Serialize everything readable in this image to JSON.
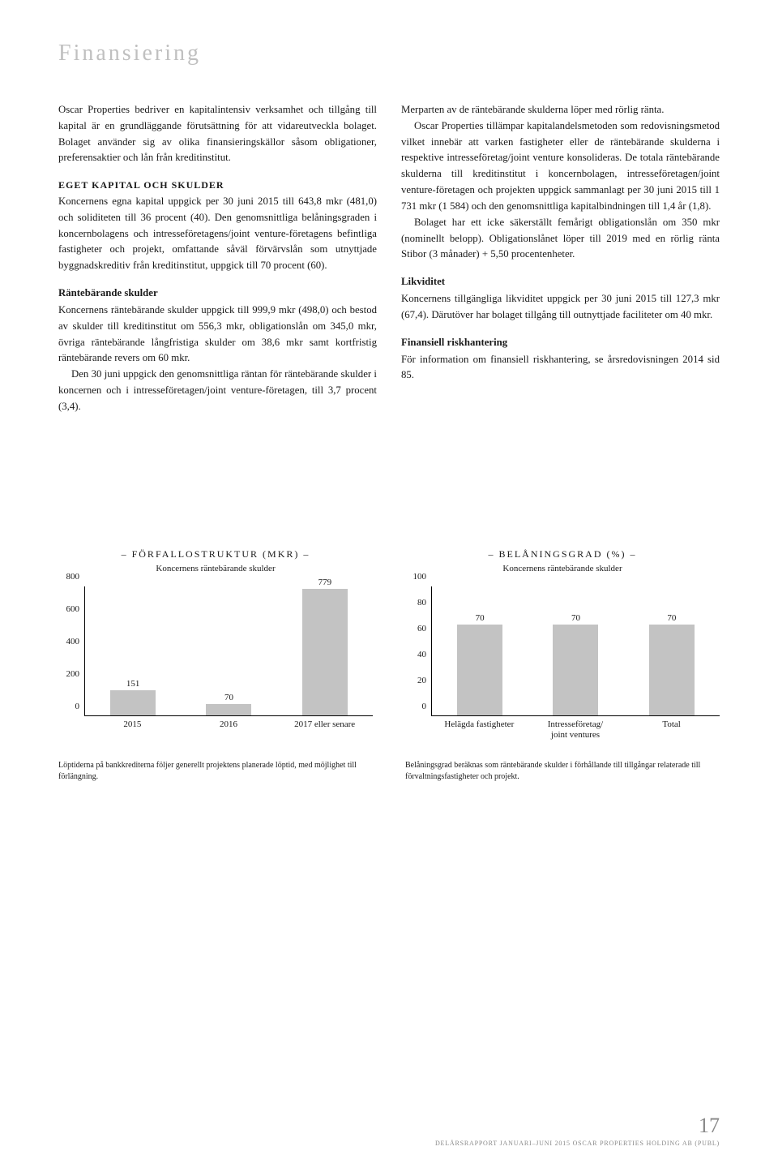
{
  "page_title": "Finansiering",
  "left": {
    "intro": "Oscar Properties bedriver en kapitalintensiv verksamhet och tillgång till kapital är en grundläggande förutsättning för att vidareutveckla bolaget. Bolaget använder sig av olika finansieringskällor såsom obligationer, preferensaktier och lån från kreditinstitut.",
    "h1": "EGET KAPITAL OCH SKULDER",
    "p1": "Koncernens egna kapital uppgick per 30 juni 2015 till 643,8 mkr (481,0) och soliditeten till 36 procent (40). Den genomsnittliga belåningsgraden i koncernbolagens och intresseföretagens/joint venture-företagens befintliga fastigheter och projekt, omfattande såväl förvärvslån som utnyttjade byggnadskreditiv från kreditinstitut, uppgick till 70 procent (60).",
    "h2": "Räntebärande skulder",
    "p2": "Koncernens räntebärande skulder uppgick till 999,9 mkr (498,0) och bestod av skulder till kreditinstitut om 556,3 mkr, obligationslån om 345,0 mkr, övriga räntebärande långfristiga skulder om 38,6 mkr samt kortfristig räntebärande revers om 60 mkr.",
    "p3": "Den 30 juni uppgick den genomsnittliga räntan för räntebärande skulder i koncernen och i intresseföretagen/joint venture-företagen, till 3,7 procent (3,4)."
  },
  "right": {
    "p1": "Merparten av de räntebärande skulderna löper med rörlig ränta.",
    "p2": "Oscar Properties tillämpar kapitalandelsmetoden som redovisningsmetod vilket innebär att varken fastigheter eller de räntebärande skulderna i respektive intresseföretag/joint venture konsolideras. De totala räntebärande skulderna till kreditinstitut i koncernbolagen, intresseföretagen/joint venture-företagen och projekten uppgick sammanlagt per 30 juni 2015 till 1 731 mkr (1 584) och den genomsnittliga kapitalbindningen till 1,4 år (1,8).",
    "p3": "Bolaget har ett icke säkerställt femårigt obligationslån om 350 mkr (nominellt belopp). Obligationslånet löper till 2019 med en rörlig ränta Stibor (3 månader) + 5,50 procentenheter.",
    "h1": "Likviditet",
    "p4": "Koncernens tillgängliga likviditet uppgick per 30 juni 2015 till 127,3 mkr (67,4). Därutöver har bolaget tillgång till outnyttjade faciliteter om 40 mkr.",
    "h2": "Finansiell riskhantering",
    "p5": "För information om finansiell riskhantering, se årsredovisningen 2014 sid 85."
  },
  "chart1": {
    "type": "bar",
    "title": "– FÖRFALLOSTRUKTUR (MKR) –",
    "subtitle": "Koncernens räntebärande skulder",
    "categories": [
      "2015",
      "2016",
      "2017 eller senare"
    ],
    "values": [
      151,
      70,
      779
    ],
    "yticks": [
      0,
      200,
      400,
      600,
      800
    ],
    "ymax": 800,
    "bar_color": "#c3c3c3",
    "axis_color": "#000000",
    "fontsize": 11
  },
  "chart2": {
    "type": "bar",
    "title": "– BELÅNINGSGRAD (%) –",
    "subtitle": "Koncernens räntebärande skulder",
    "categories": [
      "Helägda fastigheter",
      "Intresseföretag/ joint ventures",
      "Total"
    ],
    "values": [
      70,
      70,
      70
    ],
    "yticks": [
      0,
      20,
      40,
      60,
      80,
      100
    ],
    "ymax": 100,
    "bar_color": "#c3c3c3",
    "axis_color": "#000000",
    "fontsize": 11
  },
  "footnote_left": "Löptiderna på bankkrediterna följer generellt projektens planerade löptid, med möjlighet till förlängning.",
  "footnote_right": "Belåningsgrad beräknas som räntebärande skulder i förhållande till tillgångar relaterade till förvaltningsfastigheter och projekt.",
  "page_number": "17",
  "footer_text": "DELÅRSRAPPORT JANUARI–JUNI 2015 OSCAR PROPERTIES HOLDING AB (PUBL)"
}
